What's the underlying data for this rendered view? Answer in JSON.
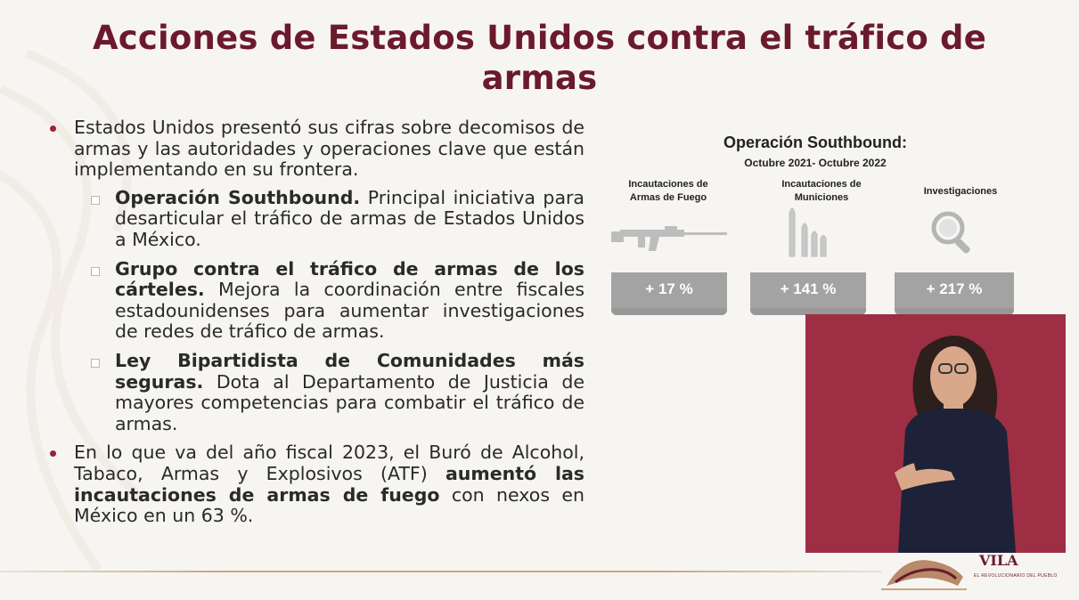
{
  "slide": {
    "title_line1": "Acciones de Estados Unidos contra el tráfico de",
    "title_line2": "armas"
  },
  "body": {
    "bullet1": "Estados Unidos presentó sus cifras sobre decomisos de armas y las autoridades y operaciones clave que están implementando en su frontera.",
    "sub1_bold": "Operación Southbound.",
    "sub1_text": " Principal iniciativa para desarticular el tráfico de armas de Estados Unidos a México.",
    "sub2_bold": "Grupo contra el tráfico de armas de los cárteles.",
    "sub2_text": " Mejora la coordinación entre fiscales estadounidenses para aumentar investigaciones de redes de tráfico de armas.",
    "sub3_bold": "Ley Bipartidista de Comunidades más seguras.",
    "sub3_text": " Dota al Departamento de Justicia de mayores competencias para combatir el tráfico de armas.",
    "bullet2_pre": "En lo que va del año fiscal 2023, el Buró de Alcohol, Tabaco, Armas y Explosivos (ATF) ",
    "bullet2_bold": "aumentó las incautaciones de armas de fuego",
    "bullet2_post": " con nexos en México en un 63 %."
  },
  "infographic": {
    "title": "Operación Southbound:",
    "subtitle": "Octubre 2021- Octubre 2022",
    "columns": [
      {
        "label_line1": "Incautaciones de",
        "label_line2": "Armas de Fuego",
        "value": "+ 17 %",
        "icon": "rifle-icon"
      },
      {
        "label_line1": "Incautaciones de",
        "label_line2": "Municiones",
        "value": "+ 141 %",
        "icon": "ammunition-icon"
      },
      {
        "label_line1": "Investigaciones",
        "label_line2": "",
        "value": "+ 217 %",
        "icon": "magnifier-icon"
      }
    ]
  },
  "logo": {
    "text": "VILA",
    "subtext": "EL REVOLUCIONARIO DEL PUEBLO"
  },
  "colors": {
    "accent": "#6b1a2c",
    "bullet": "#9b2335",
    "stat_box": "#a3a3a3",
    "interpreter_bg": "#9e2e44"
  }
}
